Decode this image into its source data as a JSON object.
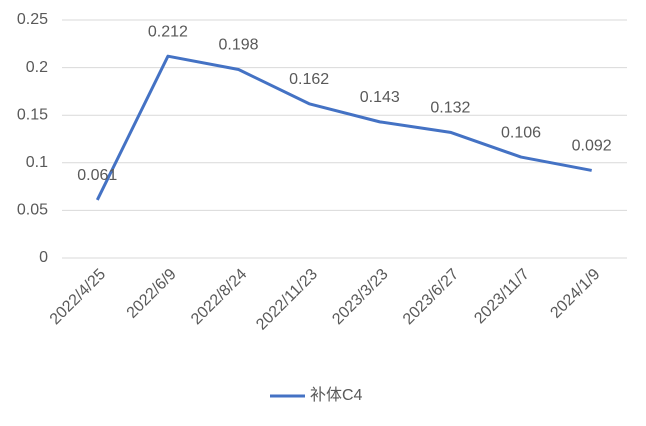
{
  "chart_data": {
    "type": "line",
    "categories": [
      "2022/4/25",
      "2022/6/9",
      "2022/8/24",
      "2022/11/23",
      "2023/3/23",
      "2023/6/27",
      "2023/11/7",
      "2024/1/9"
    ],
    "series": [
      {
        "name": "补体C4",
        "color": "#4472c4",
        "values": [
          0.061,
          0.212,
          0.198,
          0.162,
          0.143,
          0.132,
          0.106,
          0.092
        ]
      }
    ],
    "ylim": [
      0,
      0.25
    ],
    "yticks": [
      0,
      0.05,
      0.1,
      0.15,
      0.2,
      0.25
    ],
    "grid": true,
    "legend": "bottom"
  }
}
